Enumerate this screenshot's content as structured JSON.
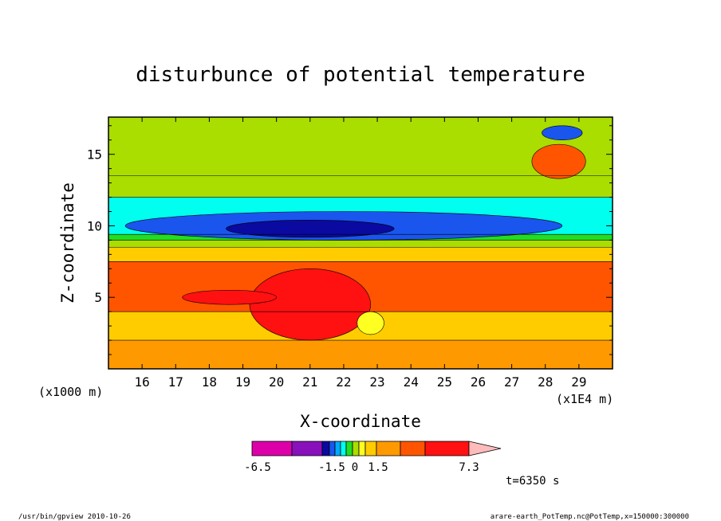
{
  "chart_data": {
    "type": "heatmap",
    "title": "disturbunce of potential temperature",
    "xlabel": "X-coordinate",
    "ylabel": "Z-coordinate",
    "x_unit_label": "(x1E4 m)",
    "y_unit_label": "(x1000 m)",
    "xlim": [
      15.0,
      30.0
    ],
    "ylim": [
      0.0,
      17.6
    ],
    "x_ticks": [
      "16",
      "17",
      "18",
      "19",
      "20",
      "21",
      "22",
      "23",
      "24",
      "25",
      "26",
      "27",
      "28",
      "29"
    ],
    "y_ticks": [
      "5",
      "10",
      "15"
    ],
    "colorbar": {
      "labels": [
        "-6.5",
        "-1.5",
        "0",
        "1.5",
        "7.3"
      ],
      "levels": [
        -6.5,
        -4.5,
        -3.0,
        -1.5,
        -1.0,
        -0.5,
        0.0,
        0.5,
        1.0,
        1.5,
        3.0,
        4.5,
        6.0,
        7.3
      ],
      "colors": [
        "#dd00aa",
        "#8811bb",
        "#0a0aa0",
        "#1a55ee",
        "#00aaff",
        "#00ffee",
        "#22dd22",
        "#aadd00",
        "#ffff22",
        "#ffcc00",
        "#ff9900",
        "#ff5500",
        "#ff1111",
        "#ff7777",
        "#ffbbbb"
      ]
    },
    "time_label": "t=6350 s",
    "layers": [
      {
        "zmin": 0.0,
        "zmax": 2.0,
        "value": 1.5
      },
      {
        "zmin": 2.0,
        "zmax": 4.0,
        "value": 1.2
      },
      {
        "zmin": 4.0,
        "zmax": 7.5,
        "value": 3.5
      },
      {
        "zmin": 7.5,
        "zmax": 8.5,
        "value": 1.2
      },
      {
        "zmin": 8.5,
        "zmax": 9.0,
        "value": 0.3
      },
      {
        "zmin": 9.0,
        "zmax": 9.4,
        "value": -0.3
      },
      {
        "zmin": 9.4,
        "zmax": 12.0,
        "value": -0.8
      },
      {
        "zmin": 12.0,
        "zmax": 13.5,
        "value": 0.3
      },
      {
        "zmin": 13.5,
        "zmax": 17.6,
        "value": 0.1
      }
    ],
    "features": [
      {
        "name": "tropopause-cold-core",
        "x": 22.0,
        "z": 10.0,
        "rx": 6.5,
        "rz": 1.0,
        "value": -2.0
      },
      {
        "name": "tropopause-cold-center",
        "x": 21.0,
        "z": 9.8,
        "rx": 2.5,
        "rz": 0.6,
        "value": -4.0
      },
      {
        "name": "warm-convection",
        "x": 21.0,
        "z": 4.5,
        "rx": 1.8,
        "rz": 2.5,
        "value": 4.8
      },
      {
        "name": "warm-band-left",
        "x": 18.6,
        "z": 5.0,
        "rx": 1.4,
        "rz": 0.5,
        "value": 4.8
      },
      {
        "name": "upper-cold-right",
        "x": 28.5,
        "z": 16.5,
        "rx": 0.6,
        "rz": 0.5,
        "value": -2.0
      },
      {
        "name": "upper-warm-right",
        "x": 28.4,
        "z": 14.5,
        "rx": 0.8,
        "rz": 1.2,
        "value": 3.0
      },
      {
        "name": "cell-near-23",
        "x": 22.8,
        "z": 3.2,
        "rx": 0.4,
        "rz": 0.8,
        "value": 0.6
      }
    ]
  },
  "footer": {
    "left": "/usr/bin/gpview   2010-10-26",
    "right": "arare-earth_PotTemp.nc@PotTemp,x=150000:300000"
  }
}
